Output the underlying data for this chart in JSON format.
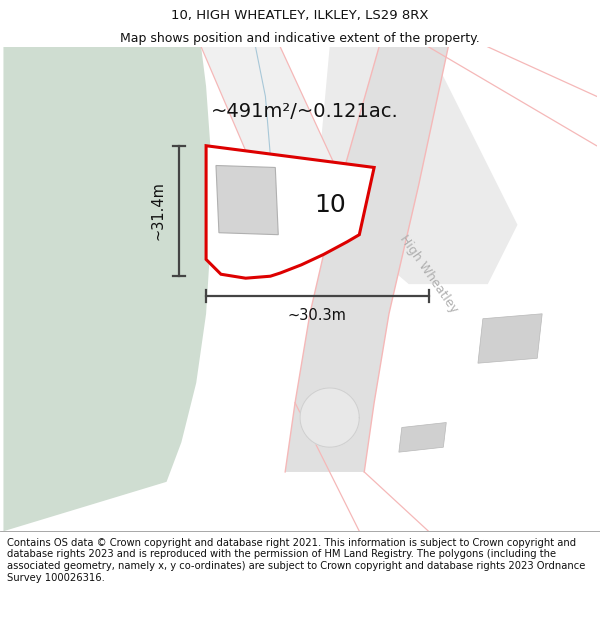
{
  "title_line1": "10, HIGH WHEATLEY, ILKLEY, LS29 8RX",
  "title_line2": "Map shows position and indicative extent of the property.",
  "footer_text": "Contains OS data © Crown copyright and database right 2021. This information is subject to Crown copyright and database rights 2023 and is reproduced with the permission of HM Land Registry. The polygons (including the associated geometry, namely x, y co-ordinates) are subject to Crown copyright and database rights 2023 Ordnance Survey 100026316.",
  "area_label": "~491m²/~0.121ac.",
  "number_label": "10",
  "dim_vertical": "~31.4m",
  "dim_horizontal": "~30.3m",
  "road_label": "High Wheatley",
  "bg_map_color": "#ffffff",
  "green_area_color": "#cfddd1",
  "property_fill": "#ffffff",
  "property_outline_color": "#dd0000",
  "road_outline_color": "#f5b8b8",
  "road_fill_color": "#ebebeb",
  "building_fill": "#d4d4d4",
  "building_outline": "#b0b0b0",
  "dim_line_color": "#444444",
  "stream_color": "#a8c8d8",
  "gray_road_color": "#d8d8d8",
  "title_fontsize": 9.5,
  "footer_fontsize": 7.2,
  "area_label_fontsize": 14,
  "number_fontsize": 18,
  "road_label_fontsize": 9,
  "dim_fontsize": 10.5
}
